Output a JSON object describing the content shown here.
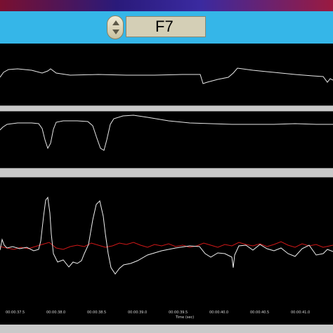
{
  "toolbar": {
    "channel": "F7"
  },
  "time_axis": {
    "label": "Time (sec)",
    "ticks": [
      "00:00:37.5",
      "00:00:38.0",
      "00:00:38.5",
      "00:00:39.0",
      "00:00:39.5",
      "00:00:40.0",
      "00:00:40.5",
      "00:00:41.0"
    ]
  },
  "colors": {
    "trace": "#ffffff",
    "overlay": "#d01818",
    "toolbar": "#35b6e8"
  }
}
